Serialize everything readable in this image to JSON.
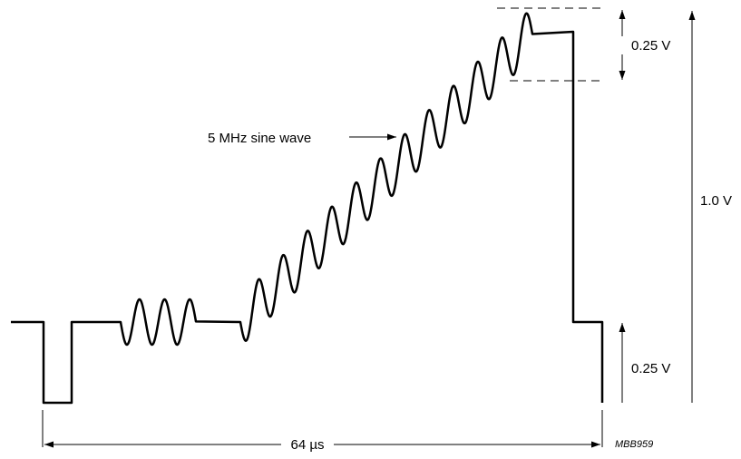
{
  "labels": {
    "sine_wave": "5 MHz sine wave",
    "top_amplitude": "0.25 V",
    "full_amplitude": "1.0 V",
    "bottom_amplitude": "0.25 V",
    "period": "64 µs",
    "reference": "MBB959"
  },
  "colors": {
    "stroke": "#000000",
    "background": "#ffffff"
  }
}
